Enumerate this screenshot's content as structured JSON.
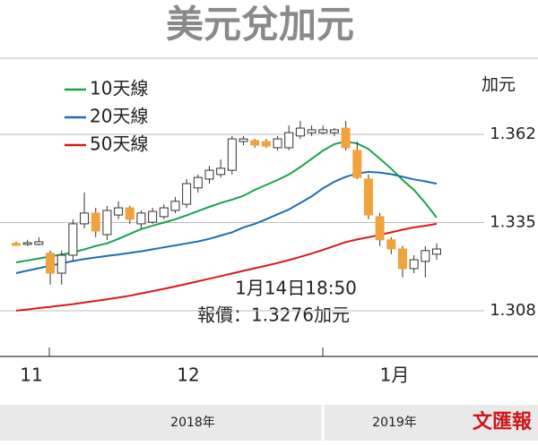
{
  "chart_data": {
    "type": "candlestick",
    "title": "美元兌加元",
    "unit_label": "加元",
    "categories": [
      null,
      null,
      null,
      null,
      null,
      null,
      null,
      null,
      null,
      null,
      null,
      null,
      null,
      null,
      null,
      null,
      null,
      null,
      null,
      null,
      null,
      null,
      null,
      null,
      null,
      null,
      null,
      null,
      null,
      null,
      null,
      null,
      null,
      null,
      null,
      null,
      null,
      null
    ],
    "open": [
      1.3286,
      1.3283,
      1.3283,
      1.3256,
      1.3195,
      1.325,
      1.3346,
      1.3379,
      1.3313,
      1.3373,
      1.3395,
      1.3346,
      1.3351,
      1.3368,
      1.3387,
      1.3406,
      1.3456,
      1.3483,
      1.3497,
      1.351,
      1.3598,
      1.3601,
      1.3598,
      1.3579,
      1.3579,
      1.3615,
      1.3625,
      1.3625,
      1.3625,
      1.3639,
      1.3571,
      1.3483,
      1.3368,
      1.3297,
      1.3269,
      1.3209,
      1.3231,
      1.3253
    ],
    "high": [
      1.3291,
      1.3297,
      1.3305,
      1.3264,
      1.3264,
      1.336,
      1.3442,
      1.3395,
      1.3401,
      1.3415,
      1.3401,
      1.3387,
      1.3395,
      1.3406,
      1.3428,
      1.3483,
      1.3497,
      1.3524,
      1.3543,
      1.3615,
      1.3615,
      1.3606,
      1.3606,
      1.3615,
      1.3647,
      1.3661,
      1.3647,
      1.3647,
      1.3639,
      1.3661,
      1.3598,
      1.3497,
      1.3379,
      1.3305,
      1.3278,
      1.325,
      1.3278,
      1.3286
    ],
    "low": [
      1.3278,
      1.3278,
      1.328,
      1.316,
      1.316,
      1.3231,
      1.3332,
      1.3305,
      1.3297,
      1.336,
      1.3346,
      1.3332,
      1.3346,
      1.336,
      1.3379,
      1.3395,
      1.3442,
      1.3469,
      1.3488,
      1.3497,
      1.3587,
      1.3579,
      1.3579,
      1.3571,
      1.3571,
      1.3606,
      1.3615,
      1.362,
      1.3615,
      1.3571,
      1.3483,
      1.336,
      1.3278,
      1.3253,
      1.3182,
      1.3195,
      1.3182,
      1.3236
    ],
    "close": [
      1.328,
      1.3288,
      1.3291,
      1.3195,
      1.325,
      1.3346,
      1.3379,
      1.3324,
      1.3387,
      1.3395,
      1.336,
      1.3379,
      1.3384,
      1.3395,
      1.3415,
      1.3469,
      1.3488,
      1.351,
      1.3516,
      1.3606,
      1.3606,
      1.3587,
      1.3584,
      1.3606,
      1.3625,
      1.3639,
      1.3634,
      1.3634,
      1.3634,
      1.3579,
      1.3488,
      1.3373,
      1.3297,
      1.3269,
      1.3209,
      1.3236,
      1.3264,
      1.3269
    ],
    "up_color": "#ffffff",
    "down_color": "#f2a23a",
    "series": [
      {
        "name": "10天線",
        "color": "#1aa34a",
        "values": [
          1.3228,
          1.3234,
          1.324,
          1.3246,
          1.3252,
          1.3258,
          1.3268,
          1.3278,
          1.3286,
          1.33,
          1.3315,
          1.333,
          1.334,
          1.335,
          1.336,
          1.3372,
          1.3385,
          1.3398,
          1.341,
          1.342,
          1.3432,
          1.345,
          1.3465,
          1.348,
          1.3497,
          1.352,
          1.3545,
          1.357,
          1.359,
          1.3598,
          1.3592,
          1.3575,
          1.3545,
          1.3515,
          1.348,
          1.345,
          1.341,
          1.3365
        ]
      },
      {
        "name": "20天線",
        "color": "#1f6db5",
        "values": [
          1.3195,
          1.3203,
          1.321,
          1.3218,
          1.3225,
          1.3232,
          1.3238,
          1.3243,
          1.3248,
          1.3252,
          1.3257,
          1.3262,
          1.3268,
          1.3274,
          1.328,
          1.3286,
          1.3292,
          1.33,
          1.331,
          1.332,
          1.3335,
          1.3346,
          1.336,
          1.3375,
          1.339,
          1.341,
          1.343,
          1.3455,
          1.3475,
          1.349,
          1.35,
          1.3505,
          1.3503,
          1.3498,
          1.349,
          1.3482,
          1.3476,
          1.3469
        ]
      },
      {
        "name": "50天線",
        "color": "#d7191c",
        "values": [
          1.308,
          1.3084,
          1.3088,
          1.3092,
          1.3096,
          1.31,
          1.3105,
          1.311,
          1.3115,
          1.312,
          1.3126,
          1.3133,
          1.314,
          1.3147,
          1.3154,
          1.3162,
          1.317,
          1.3178,
          1.3186,
          1.3194,
          1.3202,
          1.321,
          1.3218,
          1.3226,
          1.3235,
          1.3245,
          1.3255,
          1.3266,
          1.3278,
          1.329,
          1.3298,
          1.3305,
          1.3312,
          1.332,
          1.3328,
          1.3335,
          1.334,
          1.3346
        ]
      }
    ],
    "ylim": [
      1.294,
      1.3853
    ],
    "yticks": [
      1.362,
      1.335,
      1.308
    ],
    "grid": true,
    "period_labels": [
      "11",
      "12",
      "1月"
    ],
    "year_labels": [
      "2018年",
      "2019年"
    ],
    "annotation": [
      "1月14日18:50",
      "報價：1.3276加元"
    ],
    "logo": "文匯報"
  }
}
